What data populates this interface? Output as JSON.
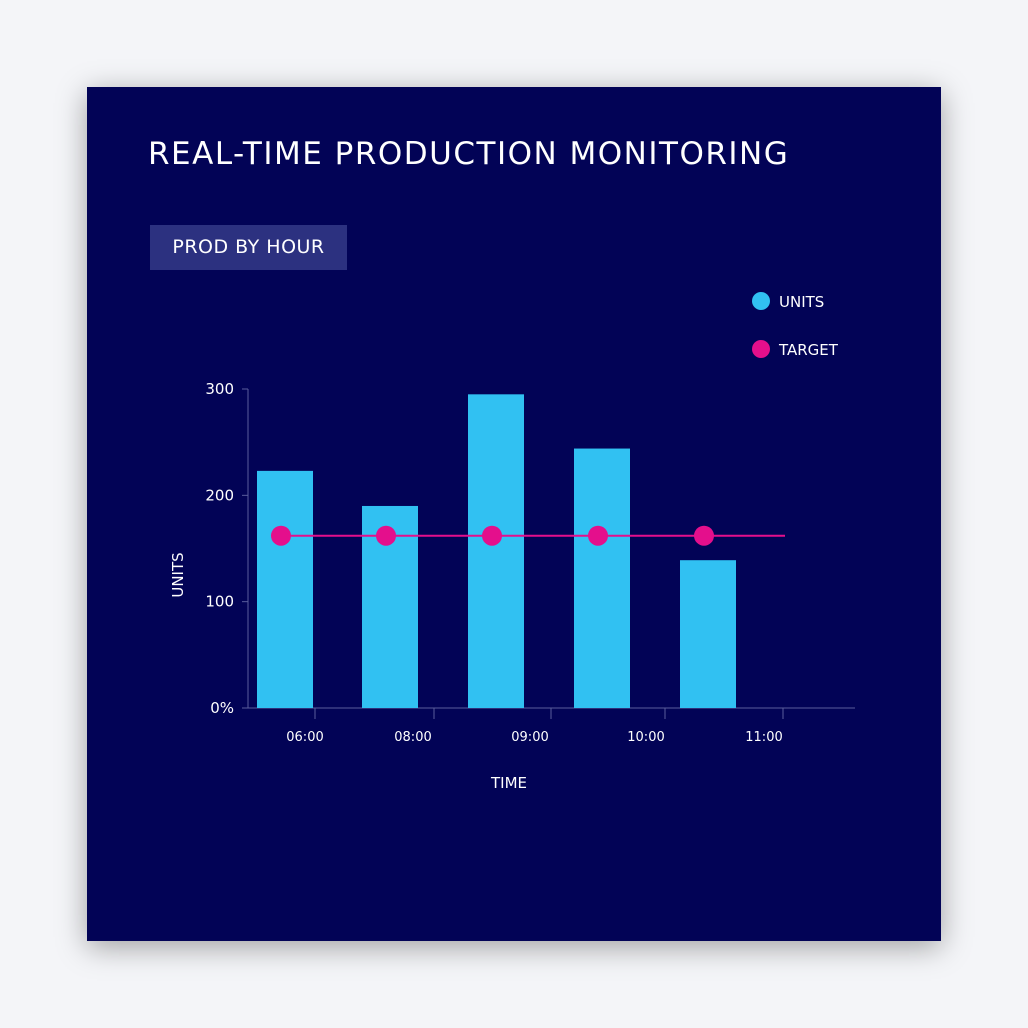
{
  "title": "REAL-TIME PRODUCTION MONITORING",
  "tag": "PROD BY HOUR",
  "colors": {
    "background": "#020356",
    "units": "#31c1f2",
    "target": "#e40f8c",
    "axis": "#5a5e9c",
    "text": "#ffffff",
    "tag_bg": "#2c3180"
  },
  "chart_data": {
    "type": "bar",
    "title": "",
    "xlabel": "TIME",
    "ylabel": "UNITS",
    "ylim": [
      0,
      300
    ],
    "y_ticks": [
      {
        "value": 0,
        "label": "0%"
      },
      {
        "value": 100,
        "label": "100"
      },
      {
        "value": 200,
        "label": "200"
      },
      {
        "value": 300,
        "label": "300"
      }
    ],
    "x_tick_labels": [
      "06:00",
      "08:00",
      "09:00",
      "10:00",
      "11:00"
    ],
    "categories": [
      "06:00",
      "08:00",
      "09:00",
      "10:00",
      "11:00"
    ],
    "series": [
      {
        "name": "UNITS",
        "type": "bar",
        "values": [
          223,
          190,
          295,
          244,
          139
        ]
      },
      {
        "name": "TARGET",
        "type": "line",
        "values": [
          162,
          162,
          162,
          162,
          162
        ]
      }
    ],
    "legend": {
      "position": "top-right",
      "items": [
        "UNITS",
        "TARGET"
      ]
    },
    "grid": false
  }
}
